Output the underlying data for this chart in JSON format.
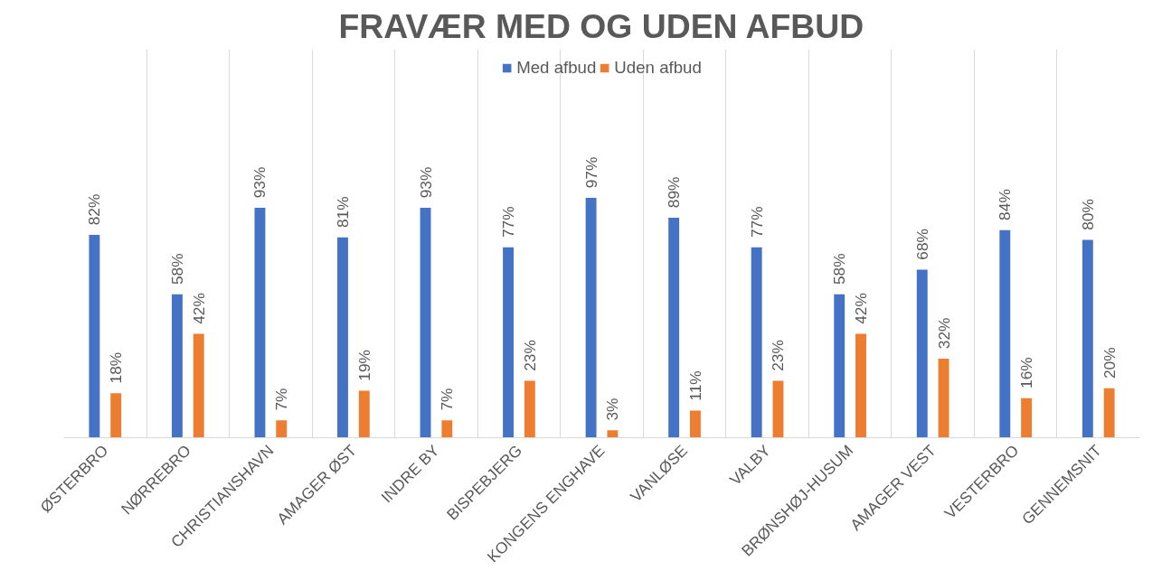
{
  "chart_data": {
    "type": "bar",
    "title": "FRAVÆR MED OG UDEN AFBUD",
    "categories": [
      "ØSTERBRO",
      "NØRREBRO",
      "CHRISTIANSHAVN",
      "AMAGER ØST",
      "INDRE BY",
      "BISPEBJERG",
      "KONGENS ENGHAVE",
      "VANLØSE",
      "VALBY",
      "BRØNSHØJ-HUSUM",
      "AMAGER VEST",
      "VESTERBRO",
      "GENNEMSNIT"
    ],
    "series": [
      {
        "name": "Med afbud",
        "color": "#4472c4",
        "values": [
          82,
          58,
          93,
          81,
          93,
          77,
          97,
          89,
          77,
          58,
          68,
          84,
          80
        ],
        "value_labels": [
          "82%",
          "58%",
          "93%",
          "81%",
          "93%",
          "77%",
          "97%",
          "89%",
          "77%",
          "58%",
          "68%",
          "84%",
          "80%"
        ]
      },
      {
        "name": "Uden afbud",
        "color": "#ed7d31",
        "values": [
          18,
          42,
          7,
          19,
          7,
          23,
          3,
          11,
          23,
          42,
          32,
          16,
          20
        ],
        "value_labels": [
          "18%",
          "42%",
          "7%",
          "19%",
          "7%",
          "23%",
          "3%",
          "11%",
          "23%",
          "42%",
          "32%",
          "16%",
          "20%"
        ]
      }
    ],
    "grid": "x",
    "legend": "top"
  }
}
